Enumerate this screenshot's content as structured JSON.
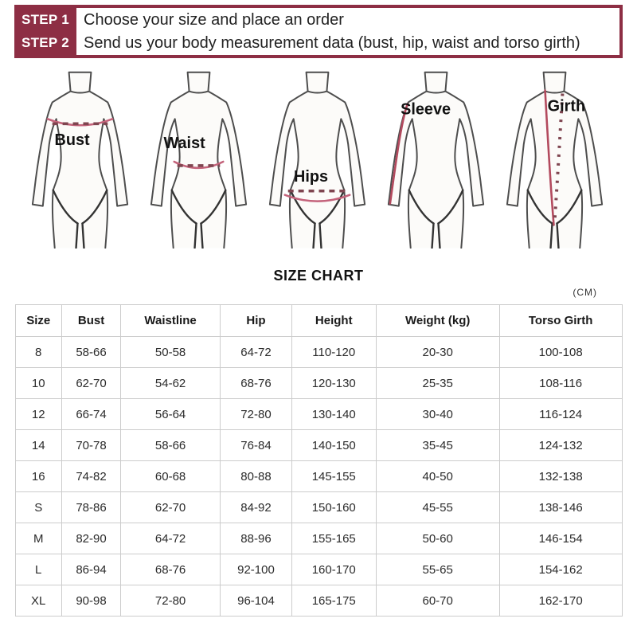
{
  "steps": [
    {
      "label": "STEP 1",
      "text": "Choose your size and place an order"
    },
    {
      "label": "STEP 2",
      "text": "Send us your body measurement data (bust, hip, waist and torso girth)"
    }
  ],
  "figures": [
    {
      "label": "Bust"
    },
    {
      "label": "Waist"
    },
    {
      "label": "Hips"
    },
    {
      "label": "Sleeve"
    },
    {
      "label": "Girth"
    }
  ],
  "size_chart": {
    "title": "SIZE CHART",
    "unit": "(CM)",
    "columns": [
      "Size",
      "Bust",
      "Waistline",
      "Hip",
      "Height",
      "Weight (kg)",
      "Torso Girth"
    ],
    "rows": [
      [
        "8",
        "58-66",
        "50-58",
        "64-72",
        "110-120",
        "20-30",
        "100-108"
      ],
      [
        "10",
        "62-70",
        "54-62",
        "68-76",
        "120-130",
        "25-35",
        "108-116"
      ],
      [
        "12",
        "66-74",
        "56-64",
        "72-80",
        "130-140",
        "30-40",
        "116-124"
      ],
      [
        "14",
        "70-78",
        "58-66",
        "76-84",
        "140-150",
        "35-45",
        "124-132"
      ],
      [
        "16",
        "74-82",
        "60-68",
        "80-88",
        "145-155",
        "40-50",
        "132-138"
      ],
      [
        "S",
        "78-86",
        "62-70",
        "84-92",
        "150-160",
        "45-55",
        "138-146"
      ],
      [
        "M",
        "82-90",
        "64-72",
        "88-96",
        "155-165",
        "50-60",
        "146-154"
      ],
      [
        "L",
        "86-94",
        "68-76",
        "92-100",
        "160-170",
        "55-65",
        "154-162"
      ],
      [
        "XL",
        "90-98",
        "72-80",
        "96-104",
        "165-175",
        "60-70",
        "162-170"
      ]
    ]
  },
  "colors": {
    "accent": "#8d2e44",
    "measure_line": "#c4637b",
    "dash_line": "#7f4550",
    "sleeve_line": "#b34a5e"
  }
}
